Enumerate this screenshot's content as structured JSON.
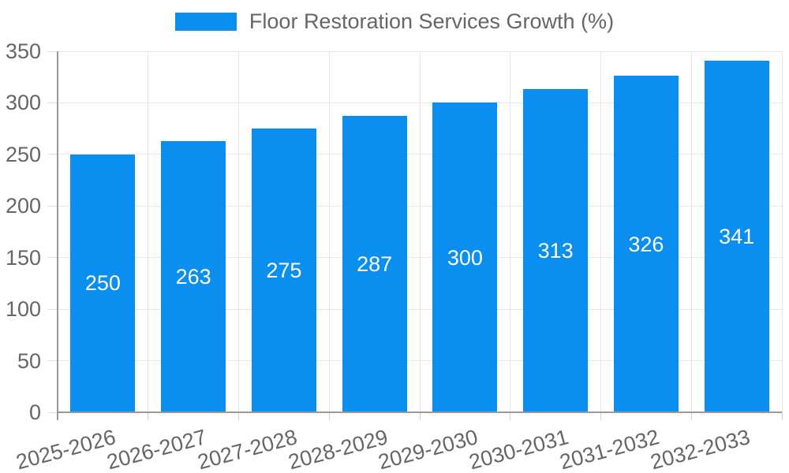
{
  "legend": {
    "label": "Floor Restoration Services Growth (%)"
  },
  "chart_data": {
    "type": "bar",
    "title": "Floor Restoration Services Growth (%)",
    "series_name": "Floor Restoration Services Growth (%)",
    "categories": [
      "2025-2026",
      "2026-2027",
      "2027-2028",
      "2028-2029",
      "2029-2030",
      "2030-2031",
      "2031-2032",
      "2032-2033"
    ],
    "values": [
      250,
      263,
      275,
      287,
      300,
      313,
      326,
      341
    ],
    "value_labels": [
      "250",
      "263",
      "275",
      "287",
      "300",
      "313",
      "326",
      "341"
    ],
    "ytick_labels": [
      "0",
      "50",
      "100",
      "150",
      "200",
      "250",
      "300",
      "350"
    ],
    "ylim": [
      0,
      350
    ],
    "ytick_step": 50,
    "xlabel": "",
    "ylabel": "",
    "grid": true,
    "legend_position": "top",
    "x_label_rotation_deg": -15,
    "colors": {
      "bar": "#0a8ff0",
      "value_label": "#ffffff",
      "axis_text": "#666666",
      "grid_line": "#e6e6e6",
      "axis_line": "#9a9a9a",
      "background": "#ffffff"
    }
  }
}
